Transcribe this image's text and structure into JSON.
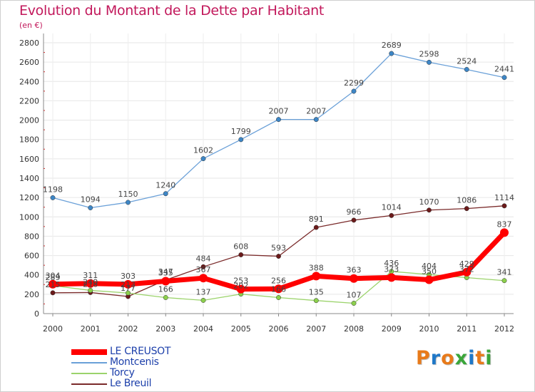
{
  "header": {
    "title": "Evolution du Montant de la Dette par Habitant",
    "subtitle": "(en €)"
  },
  "logo": {
    "text": "Proxiti",
    "colors": [
      "#e87a1a",
      "#1f78c8",
      "#e87a1a",
      "#3aa63a",
      "#1f78c8",
      "#e87a1a",
      "#3aa63a"
    ]
  },
  "chart_data": {
    "type": "line",
    "title": "Evolution du Montant de la Dette par Habitant",
    "subtitle": "(en €)",
    "xlabel": "",
    "ylabel": "",
    "x": [
      "2000",
      "2001",
      "2002",
      "2003",
      "2004",
      "2005",
      "2006",
      "2007",
      "2008",
      "2009",
      "2010",
      "2011",
      "2012"
    ],
    "ylim": [
      0,
      2800
    ],
    "yticks": [
      0,
      200,
      400,
      600,
      800,
      1000,
      1200,
      1400,
      1600,
      1800,
      2000,
      2200,
      2400,
      2600,
      2800
    ],
    "grid": true,
    "legend_position": "bottom-left",
    "series": [
      {
        "name": "LE CREUSOT",
        "color": "#ff0000",
        "values": [
          304,
          311,
          303,
          335,
          367,
          253,
          256,
          388,
          363,
          373,
          350,
          429,
          837
        ]
      },
      {
        "name": "Montcenis",
        "color": "#6aa0d8",
        "values": [
          1198,
          1094,
          1150,
          1240,
          1602,
          1799,
          2007,
          2007,
          2299,
          2689,
          2598,
          2524,
          2441
        ]
      },
      {
        "name": "Torcy",
        "color": "#9bd36b",
        "values": [
          289,
          240,
          213,
          166,
          137,
          202,
          166,
          135,
          107,
          436,
          404,
          372,
          341
        ]
      },
      {
        "name": "Le Breuil",
        "color": "#7a2a2a",
        "values": [
          215,
          218,
          177,
          347,
          484,
          608,
          593,
          891,
          966,
          1014,
          1070,
          1086,
          1114
        ]
      }
    ]
  }
}
